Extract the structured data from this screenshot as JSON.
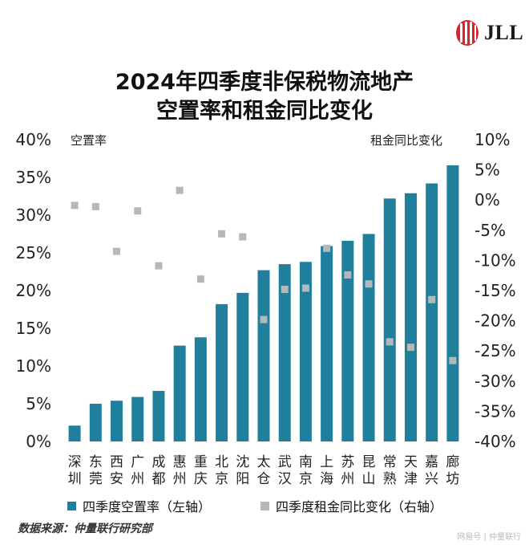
{
  "logo": {
    "text": "JLL",
    "color": "#d9252a"
  },
  "title_lines": [
    "2024年四季度非保税物流地产",
    "空置率和租金同比变化"
  ],
  "left_axis_title": "空置率",
  "right_axis_title": "租金同比变化",
  "legend": {
    "bar_label": "四季度空置率（左轴）",
    "scatter_label": "四季度租金同比变化（右轴）"
  },
  "source": "数据来源：仲量联行研究部",
  "watermark": "网易号 | 仲量联行",
  "colors": {
    "bar": "#1f7f9c",
    "scatter": "#b3b8bb"
  },
  "chart_data": {
    "type": "bar+scatter",
    "categories": [
      "深圳",
      "东莞",
      "西安",
      "广州",
      "成都",
      "惠州",
      "重庆",
      "北京",
      "沈阳",
      "太仓",
      "武汉",
      "南京",
      "上海",
      "苏州",
      "昆山",
      "常熟",
      "天津",
      "嘉兴",
      "廊坊"
    ],
    "series": [
      {
        "name": "四季度空置率（左轴）",
        "type": "bar",
        "axis": "left",
        "values": [
          2.1,
          5.0,
          5.4,
          5.9,
          6.7,
          12.7,
          13.8,
          18.2,
          19.7,
          22.7,
          23.5,
          23.8,
          25.9,
          26.6,
          27.5,
          32.2,
          32.9,
          34.2,
          36.6
        ]
      },
      {
        "name": "四季度租金同比变化（右轴）",
        "type": "scatter",
        "axis": "right",
        "values": [
          -0.9,
          -1.1,
          -8.5,
          -1.8,
          -10.9,
          1.6,
          -13.1,
          -5.6,
          -6.1,
          -19.8,
          -14.8,
          -14.6,
          -8.0,
          -12.4,
          -13.9,
          -23.5,
          -24.4,
          -16.5,
          -26.6
        ]
      }
    ],
    "y_left": {
      "min": 0,
      "max": 40,
      "ticks": [
        "0%",
        "5%",
        "10%",
        "15%",
        "20%",
        "25%",
        "30%",
        "35%",
        "40%"
      ]
    },
    "y_right": {
      "min": -40,
      "max": 10,
      "ticks": [
        "10%",
        "5%",
        "0%",
        "-5%",
        "-10%",
        "-15%",
        "-20%",
        "-25%",
        "-30%",
        "-35%",
        "-40%"
      ]
    },
    "grid": false
  }
}
